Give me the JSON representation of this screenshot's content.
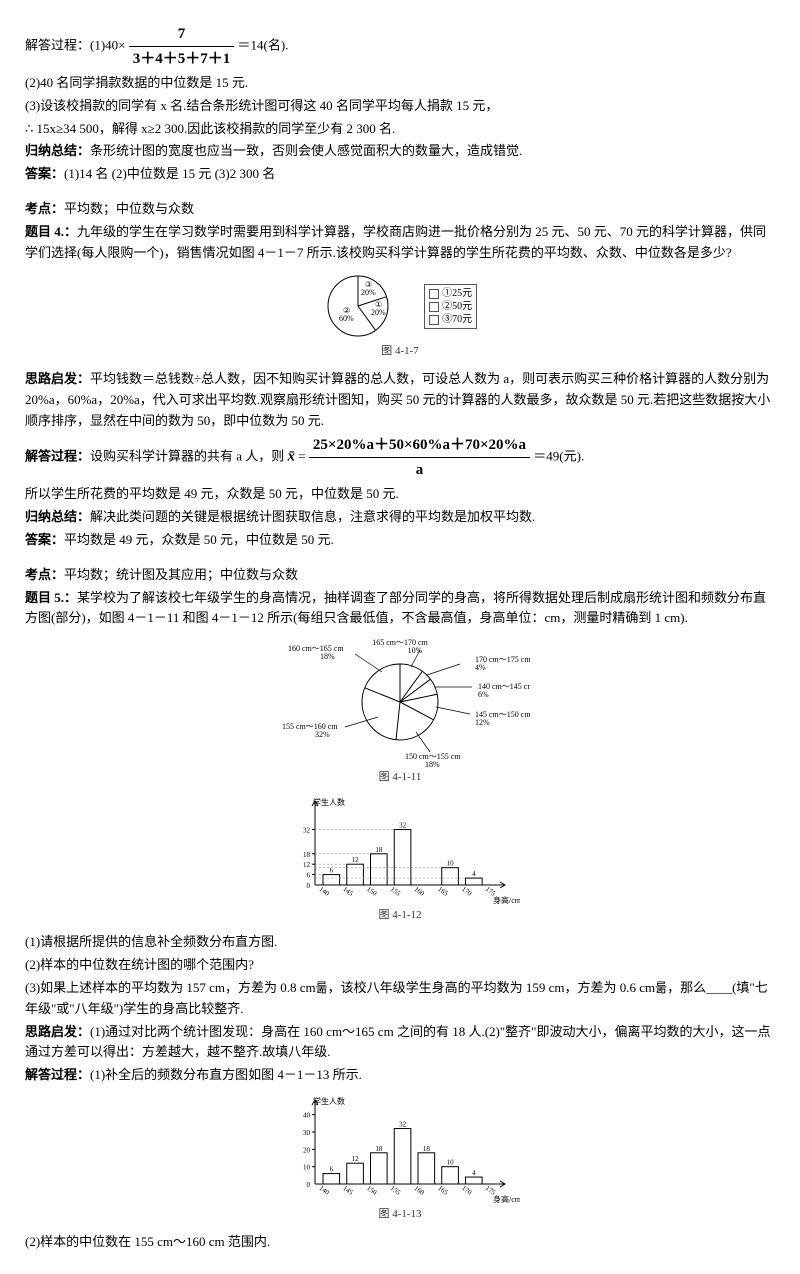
{
  "solution3": {
    "line1_prefix": "解答过程：(1)40×",
    "frac_num": "7",
    "frac_den": "3＋4＋5＋7＋1",
    "line1_suffix": "＝14(名).",
    "line2": "(2)40 名同学捐款数据的中位数是 15 元.",
    "line3": "(3)设该校捐款的同学有 x 名.结合条形统计图可得这 40 名同学平均每人捐款 15 元，",
    "line4": "∴ 15x≥34 500，解得 x≥2 300.因此该校捐款的同学至少有 2 300 名.",
    "conclusion_label": "归纳总结：",
    "conclusion": "条形统计图的宽度也应当一致，否则会使人感觉面积大的数量大，造成错觉.",
    "answer_label": "答案：",
    "answer": "(1)14 名  (2)中位数是 15 元  (3)2 300 名"
  },
  "q4": {
    "topic_label": "考点：",
    "topic": "平均数；中位数与众数",
    "title_label": "题目 4.：",
    "title": "九年级的学生在学习数学时需要用到科学计算器，学校商店购进一批价格分别为 25 元、50 元、70 元的科学计算器，供同学们选择(每人限购一个)，销售情况如图 4－1－7 所示.该校购买科学计算器的学生所花费的平均数、众数、中位数各是多少?",
    "pie": {
      "slices": [
        {
          "label": "③",
          "pct": "20%",
          "start": -90,
          "end": -18
        },
        {
          "label": "①",
          "pct": "20%",
          "start": -18,
          "end": 54
        },
        {
          "label": "②",
          "pct": "60%",
          "start": 54,
          "end": 270
        }
      ],
      "legend": [
        "①25元",
        "②50元",
        "③70元"
      ],
      "caption": "图 4-1-7"
    },
    "hint_label": "思路启发：",
    "hint": "平均钱数＝总钱数÷总人数，因不知购买计算器的总人数，可设总人数为 a，则可表示购买三种价格计算器的人数分别为 20%a，60%a，20%a，代入可求出平均数.观察扇形统计图知，购买 50 元的计算器的人数最多，故众数是 50 元.若把这些数据按大小顺序排序，显然在中间的数为 50，即中位数为 50 元.",
    "sol_label": "解答过程：",
    "sol_prefix": "设购买科学计算器的共有 a 人，则",
    "xbar_glyph": "x̄",
    "eq_mid": "=",
    "frac_num2": "25×20%a＋50×60%a＋70×20%a",
    "frac_den2": "a",
    "sol_suffix": "＝49(元).",
    "sol_line2": "所以学生所花费的平均数是 49 元，众数是 50 元，中位数是 50 元.",
    "conclusion_label": "归纳总结：",
    "conclusion": "解决此类问题的关键是根据统计图获取信息，注意求得的平均数是加权平均数.",
    "answer_label": "答案：",
    "answer": "平均数是 49 元，众数是 50 元，中位数是 50 元."
  },
  "q5": {
    "topic_label": "考点：",
    "topic": "平均数；统计图及其应用；中位数与众数",
    "title_label": "题目 5.：",
    "title": "某学校为了解该校七年级学生的身高情况，抽样调查了部分同学的身高，将所得数据处理后制成扇形统计图和频数分布直方图(部分)，如图 4－1－11 和图 4－1－12 所示(每组只含最低值，不含最高值，身高单位：cm，测量时精确到 1 cm).",
    "pie_caption": "图 4-1-11",
    "pie_labels": {
      "a": "160 cm～165 cm\n18%",
      "b": "165 cm～170 cm\n10%",
      "c": "170 cm～175 cm\n4%",
      "d": "140 cm～145 cm\n6%",
      "e": "145 cm～150 cm\n12%",
      "f": "150 cm～155 cm\n18%",
      "g": "155 cm～160 cm\n32%"
    },
    "bar1": {
      "caption": "图 4-1-12",
      "ylabel": "学生人数",
      "xlabel": "身高/cm",
      "xticks": [
        "140",
        "145",
        "150",
        "155",
        "160",
        "165",
        "170",
        "175"
      ],
      "yticks": [
        "6",
        "12",
        "18",
        "32"
      ],
      "values": [
        6,
        12,
        18,
        32,
        null,
        10,
        4
      ],
      "bar_color": "#ffffff",
      "border_color": "#000000",
      "axis_color": "#000000",
      "dash_color": "#999999",
      "max_y": 45
    },
    "sub1": "(1)请根据所提供的信息补全频数分布直方图.",
    "sub2": "(2)样本的中位数在统计图的哪个范围内?",
    "sub3": "(3)如果上述样本的平均数为 157 cm，方差为 0.8 cm룲，该校八年级学生身高的平均数为 159 cm，方差为 0.6 cm룲，那么____(填\"七年级\"或\"八年级\")学生的身高比较整齐.",
    "hint_label": "思路启发：",
    "hint": "(1)通过对比两个统计图发现：身高在 160 cm～165 cm 之间的有 18 人.(2)\"整齐\"即波动大小，偏离平均数的大小，这一点通过方差可以得出：方差越大，越不整齐.故填八年级.",
    "sol_label": "解答过程：",
    "sol": "(1)补全后的频数分布直方图如图 4－1－13 所示.",
    "bar2": {
      "caption": "图 4-1-13",
      "ylabel": "学生人数",
      "xlabel": "身高/cm",
      "xticks": [
        "140",
        "145",
        "150",
        "155",
        "160",
        "165",
        "170",
        "175"
      ],
      "yticks": [
        "10",
        "20",
        "30",
        "40"
      ],
      "values": [
        6,
        12,
        18,
        32,
        18,
        10,
        4
      ],
      "bar_color": "#ffffff",
      "border_color": "#000000",
      "axis_color": "#000000",
      "max_y": 45
    },
    "ans2": "(2)样本的中位数在 155 cm～160 cm 范围内."
  }
}
